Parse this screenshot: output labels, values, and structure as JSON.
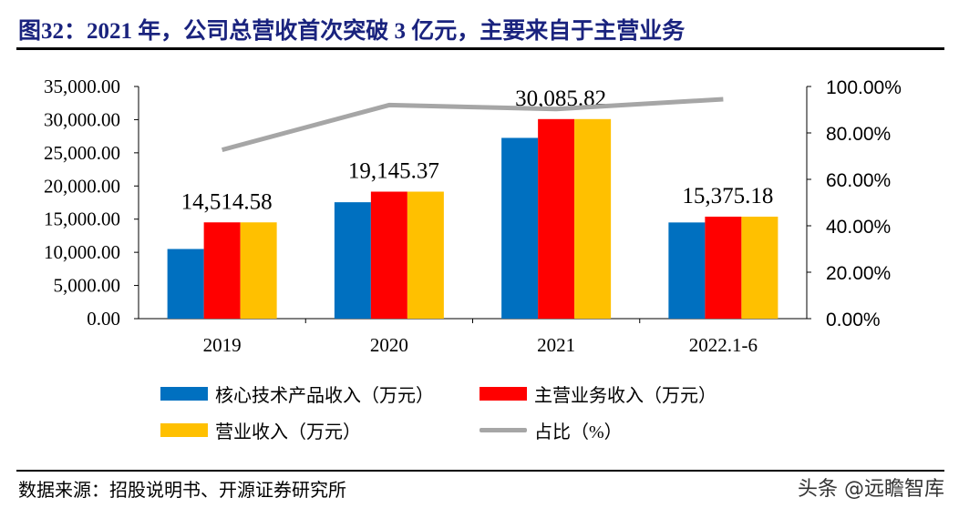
{
  "title": "图32：2021 年，公司总营收首次突破 3 亿元，主要来自于主营业务",
  "source": "数据来源：招股说明书、开源证券研究所",
  "watermark": "头条 @远瞻智库",
  "chart_data": {
    "type": "bar",
    "categories": [
      "2019",
      "2020",
      "2021",
      "2022.1-6"
    ],
    "series": [
      {
        "name": "核心技术产品收入（万元）",
        "type": "bar",
        "axis": "left",
        "color": "#0070c0",
        "values": [
          10500,
          17550,
          27250,
          14500
        ]
      },
      {
        "name": "主营业务收入（万元）",
        "type": "bar",
        "axis": "left",
        "color": "#ff0000",
        "values": [
          14514.58,
          19145.37,
          30085.82,
          15375.18
        ]
      },
      {
        "name": "营业收入（万元）",
        "type": "bar",
        "axis": "left",
        "color": "#ffc000",
        "values": [
          14514.58,
          19145.37,
          30085.82,
          15375.18
        ]
      },
      {
        "name": "占比（%）",
        "type": "line",
        "axis": "right",
        "color": "#a6a6a6",
        "values": [
          72.7,
          92.0,
          90.3,
          94.5
        ]
      }
    ],
    "data_labels": [
      "14,514.58",
      "19,145.37",
      "30,085.82",
      "15,375.18"
    ],
    "left_axis": {
      "ylim": [
        0,
        35000
      ],
      "ticks": [
        "0.00",
        "5,000.00",
        "10,000.00",
        "15,000.00",
        "20,000.00",
        "25,000.00",
        "30,000.00",
        "35,000.00"
      ]
    },
    "right_axis": {
      "ylim": [
        0,
        100
      ],
      "ticks": [
        "0.00%",
        "20.00%",
        "40.00%",
        "60.00%",
        "80.00%",
        "100.00%"
      ]
    },
    "legend_position": "bottom",
    "grid": false
  }
}
